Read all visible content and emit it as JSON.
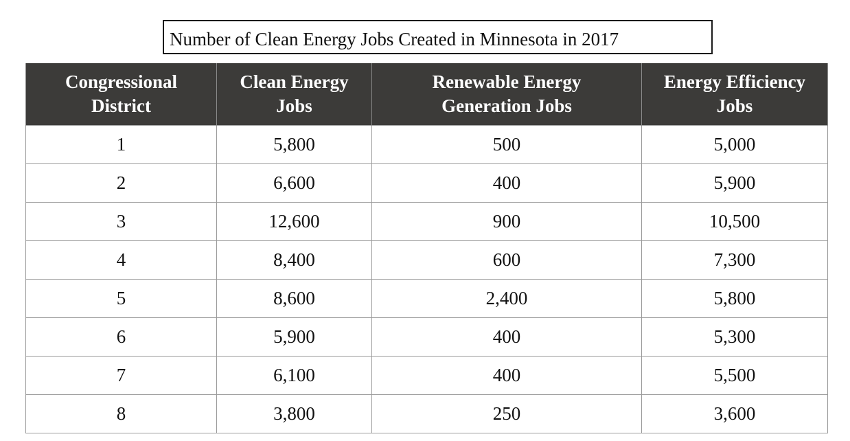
{
  "chart_data": {
    "type": "table",
    "title": "Number of Clean Energy Jobs Created in Minnesota in 2017",
    "columns": [
      {
        "line1": "Congressional",
        "line2": "District"
      },
      {
        "line1": "Clean Energy",
        "line2": "Jobs"
      },
      {
        "line1": "Renewable Energy",
        "line2": "Generation Jobs"
      },
      {
        "line1": "Energy Efficiency",
        "line2": "Jobs"
      }
    ],
    "rows": [
      [
        "1",
        "5,800",
        "500",
        "5,000"
      ],
      [
        "2",
        "6,600",
        "400",
        "5,900"
      ],
      [
        "3",
        "12,600",
        "900",
        "10,500"
      ],
      [
        "4",
        "8,400",
        "600",
        "7,300"
      ],
      [
        "5",
        "8,600",
        "2,400",
        "5,800"
      ],
      [
        "6",
        "5,900",
        "400",
        "5,300"
      ],
      [
        "7",
        "6,100",
        "400",
        "5,500"
      ],
      [
        "8",
        "3,800",
        "250",
        "3,600"
      ]
    ]
  },
  "colors": {
    "header_background": "#3c3b39",
    "header_text": "#ffffff",
    "grid_line": "#9a9a9a"
  }
}
